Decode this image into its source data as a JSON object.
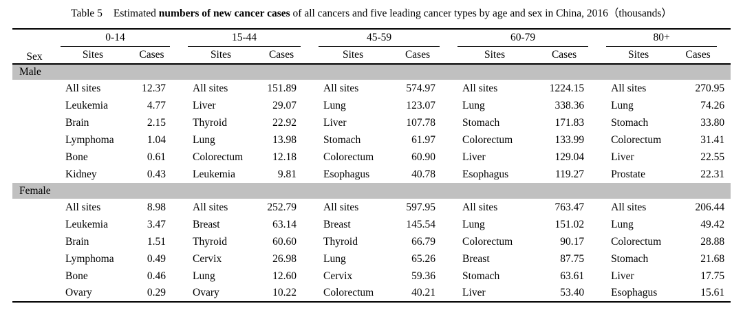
{
  "title": {
    "label": "Table 5",
    "segment_1": "Estimated ",
    "segment_bold": "numbers of new cancer cases",
    "segment_2": " of all cancers and five leading cancer types by age and sex in China, 2016（thousands）"
  },
  "table": {
    "sex_header": "Sex",
    "age_groups": [
      "0-14",
      "15-44",
      "45-59",
      "60-79",
      "80+"
    ],
    "subheaders": {
      "sites": "Sites",
      "cases": "Cases"
    },
    "sections": [
      {
        "label": "Male",
        "rows": [
          [
            {
              "site": "All sites",
              "cases": "12.37"
            },
            {
              "site": "All sites",
              "cases": "151.89"
            },
            {
              "site": "All sites",
              "cases": "574.97"
            },
            {
              "site": "All sites",
              "cases": "1224.15"
            },
            {
              "site": "All sites",
              "cases": "270.95"
            }
          ],
          [
            {
              "site": "Leukemia",
              "cases": "4.77"
            },
            {
              "site": "Liver",
              "cases": "29.07"
            },
            {
              "site": "Lung",
              "cases": "123.07"
            },
            {
              "site": "Lung",
              "cases": "338.36"
            },
            {
              "site": "Lung",
              "cases": "74.26"
            }
          ],
          [
            {
              "site": "Brain",
              "cases": "2.15"
            },
            {
              "site": "Thyroid",
              "cases": "22.92"
            },
            {
              "site": "Liver",
              "cases": "107.78"
            },
            {
              "site": "Stomach",
              "cases": "171.83"
            },
            {
              "site": "Stomach",
              "cases": "33.80"
            }
          ],
          [
            {
              "site": "Lymphoma",
              "cases": "1.04"
            },
            {
              "site": "Lung",
              "cases": "13.98"
            },
            {
              "site": "Stomach",
              "cases": "61.97"
            },
            {
              "site": "Colorectum",
              "cases": "133.99"
            },
            {
              "site": "Colorectum",
              "cases": "31.41"
            }
          ],
          [
            {
              "site": "Bone",
              "cases": "0.61"
            },
            {
              "site": "Colorectum",
              "cases": "12.18"
            },
            {
              "site": "Colorectum",
              "cases": "60.90"
            },
            {
              "site": "Liver",
              "cases": "129.04"
            },
            {
              "site": "Liver",
              "cases": "22.55"
            }
          ],
          [
            {
              "site": "Kidney",
              "cases": "0.43"
            },
            {
              "site": "Leukemia",
              "cases": "9.81"
            },
            {
              "site": "Esophagus",
              "cases": "40.78"
            },
            {
              "site": "Esophagus",
              "cases": "119.27"
            },
            {
              "site": "Prostate",
              "cases": "22.31"
            }
          ]
        ]
      },
      {
        "label": "Female",
        "rows": [
          [
            {
              "site": "All sites",
              "cases": "8.98"
            },
            {
              "site": "All sites",
              "cases": "252.79"
            },
            {
              "site": "All sites",
              "cases": "597.95"
            },
            {
              "site": "All sites",
              "cases": "763.47"
            },
            {
              "site": "All sites",
              "cases": "206.44"
            }
          ],
          [
            {
              "site": "Leukemia",
              "cases": "3.47"
            },
            {
              "site": "Breast",
              "cases": "63.14"
            },
            {
              "site": "Breast",
              "cases": "145.54"
            },
            {
              "site": "Lung",
              "cases": "151.02"
            },
            {
              "site": "Lung",
              "cases": "49.42"
            }
          ],
          [
            {
              "site": "Brain",
              "cases": "1.51"
            },
            {
              "site": "Thyroid",
              "cases": "60.60"
            },
            {
              "site": "Thyroid",
              "cases": "66.79"
            },
            {
              "site": "Colorectum",
              "cases": "90.17"
            },
            {
              "site": "Colorectum",
              "cases": "28.88"
            }
          ],
          [
            {
              "site": "Lymphoma",
              "cases": "0.49"
            },
            {
              "site": "Cervix",
              "cases": "26.98"
            },
            {
              "site": "Lung",
              "cases": "65.26"
            },
            {
              "site": "Breast",
              "cases": "87.75"
            },
            {
              "site": "Stomach",
              "cases": "21.68"
            }
          ],
          [
            {
              "site": "Bone",
              "cases": "0.46"
            },
            {
              "site": "Lung",
              "cases": "12.60"
            },
            {
              "site": "Cervix",
              "cases": "59.36"
            },
            {
              "site": "Stomach",
              "cases": "63.61"
            },
            {
              "site": "Liver",
              "cases": "17.75"
            }
          ],
          [
            {
              "site": "Ovary",
              "cases": "0.29"
            },
            {
              "site": "Ovary",
              "cases": "10.22"
            },
            {
              "site": "Colorectum",
              "cases": "40.21"
            },
            {
              "site": "Liver",
              "cases": "53.40"
            },
            {
              "site": "Esophagus",
              "cases": "15.61"
            }
          ]
        ]
      }
    ]
  },
  "colors": {
    "section_band": "#c0c0c0",
    "rule": "#000000",
    "background": "#ffffff"
  }
}
